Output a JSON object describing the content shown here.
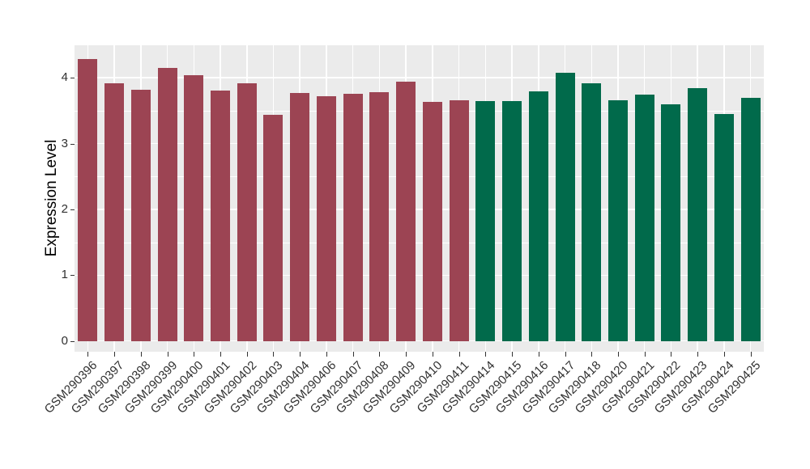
{
  "chart_data": {
    "type": "bar",
    "title": "",
    "xlabel": "",
    "ylabel": "Expression Level",
    "ylim": [
      0,
      4.49
    ],
    "yticks": [
      0,
      1,
      2,
      3,
      4
    ],
    "grid": true,
    "legend": "none",
    "panel_bg": "#EBEBEB",
    "grid_color": "#FFFFFF",
    "categories": [
      "GSM290396",
      "GSM290397",
      "GSM290398",
      "GSM290399",
      "GSM290400",
      "GSM290401",
      "GSM290402",
      "GSM290403",
      "GSM290404",
      "GSM290406",
      "GSM290407",
      "GSM290408",
      "GSM290409",
      "GSM290410",
      "GSM290411",
      "GSM290414",
      "GSM290415",
      "GSM290416",
      "GSM290417",
      "GSM290418",
      "GSM290420",
      "GSM290421",
      "GSM290422",
      "GSM290423",
      "GSM290424",
      "GSM290425"
    ],
    "values": [
      4.28,
      3.92,
      3.82,
      4.15,
      4.04,
      3.8,
      3.92,
      3.43,
      3.77,
      3.72,
      3.76,
      3.78,
      3.94,
      3.63,
      3.66,
      3.64,
      3.65,
      3.79,
      4.08,
      3.92,
      3.66,
      3.74,
      3.6,
      3.84,
      3.45,
      3.69
    ],
    "groups": [
      "group1",
      "group1",
      "group1",
      "group1",
      "group1",
      "group1",
      "group1",
      "group1",
      "group1",
      "group1",
      "group1",
      "group1",
      "group1",
      "group1",
      "group1",
      "group2",
      "group2",
      "group2",
      "group2",
      "group2",
      "group2",
      "group2",
      "group2",
      "group2",
      "group2",
      "group2"
    ],
    "group_colors": {
      "group1": "#9C4453",
      "group2": "#016A4B"
    }
  }
}
